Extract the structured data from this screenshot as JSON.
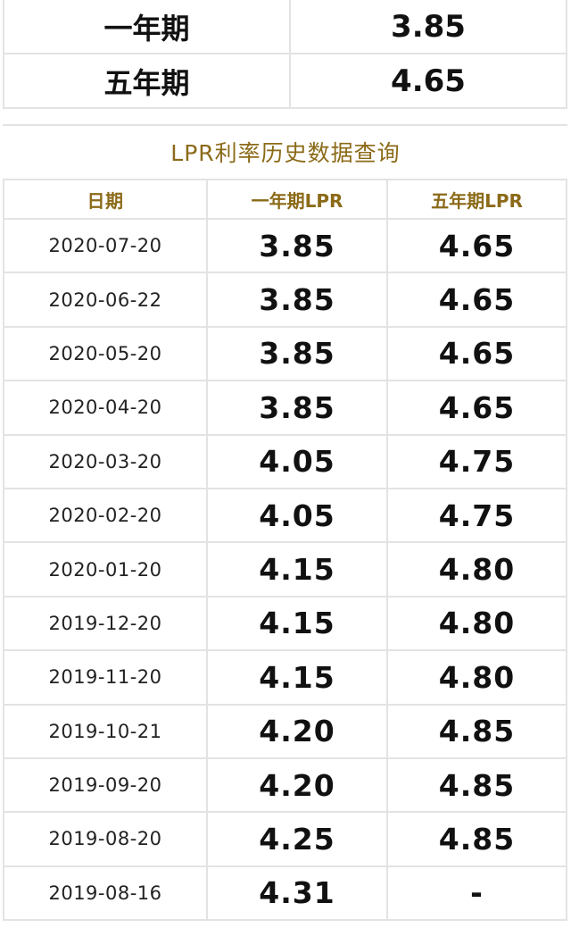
{
  "current_rates": [
    {
      "term": "一年期",
      "rate": "3.85"
    },
    {
      "term": "五年期",
      "rate": "4.65"
    }
  ],
  "history": {
    "title": "LPR利率历史数据查询",
    "headers": [
      "日期",
      "一年期LPR",
      "五年期LPR"
    ],
    "rows": [
      {
        "date": "2020-07-20",
        "one_year": "3.85",
        "five_year": "4.65"
      },
      {
        "date": "2020-06-22",
        "one_year": "3.85",
        "five_year": "4.65"
      },
      {
        "date": "2020-05-20",
        "one_year": "3.85",
        "five_year": "4.65"
      },
      {
        "date": "2020-04-20",
        "one_year": "3.85",
        "five_year": "4.65"
      },
      {
        "date": "2020-03-20",
        "one_year": "4.05",
        "five_year": "4.75"
      },
      {
        "date": "2020-02-20",
        "one_year": "4.05",
        "five_year": "4.75"
      },
      {
        "date": "2020-01-20",
        "one_year": "4.15",
        "five_year": "4.80"
      },
      {
        "date": "2019-12-20",
        "one_year": "4.15",
        "five_year": "4.80"
      },
      {
        "date": "2019-11-20",
        "one_year": "4.15",
        "five_year": "4.80"
      },
      {
        "date": "2019-10-21",
        "one_year": "4.20",
        "five_year": "4.85"
      },
      {
        "date": "2019-09-20",
        "one_year": "4.20",
        "five_year": "4.85"
      },
      {
        "date": "2019-08-20",
        "one_year": "4.25",
        "five_year": "4.85"
      },
      {
        "date": "2019-08-16",
        "one_year": "4.31",
        "five_year": "-"
      }
    ]
  },
  "colors": {
    "accent": "#8b6a18",
    "border": "#e3e3e3"
  }
}
